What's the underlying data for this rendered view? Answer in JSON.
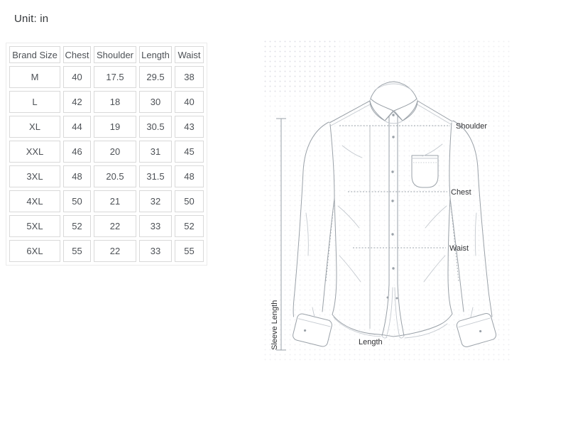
{
  "unit_label": "Unit: in",
  "table": {
    "headers": [
      "Brand Size",
      "Chest",
      "Shoulder",
      "Length",
      "Waist"
    ],
    "rows": [
      [
        "M",
        "40",
        "17.5",
        "29.5",
        "38"
      ],
      [
        "L",
        "42",
        "18",
        "30",
        "40"
      ],
      [
        "XL",
        "44",
        "19",
        "30.5",
        "43"
      ],
      [
        "XXL",
        "46",
        "20",
        "31",
        "45"
      ],
      [
        "3XL",
        "48",
        "20.5",
        "31.5",
        "48"
      ],
      [
        "4XL",
        "50",
        "21",
        "32",
        "50"
      ],
      [
        "5XL",
        "52",
        "22",
        "33",
        "52"
      ],
      [
        "6XL",
        "55",
        "22",
        "33",
        "55"
      ]
    ]
  },
  "diagram": {
    "labels": {
      "shoulder": "Shoulder",
      "chest": "Chest",
      "waist": "Waist",
      "length": "Length",
      "sleeve_length": "Sleeve Length"
    }
  },
  "colors": {
    "table_cell_border": "#d9d9d9",
    "table_outer_border": "#ebebeb",
    "table_text": "#4d5156",
    "sketch_line": "#9aa1a8",
    "label_text": "#2f3033",
    "background": "#ffffff"
  }
}
